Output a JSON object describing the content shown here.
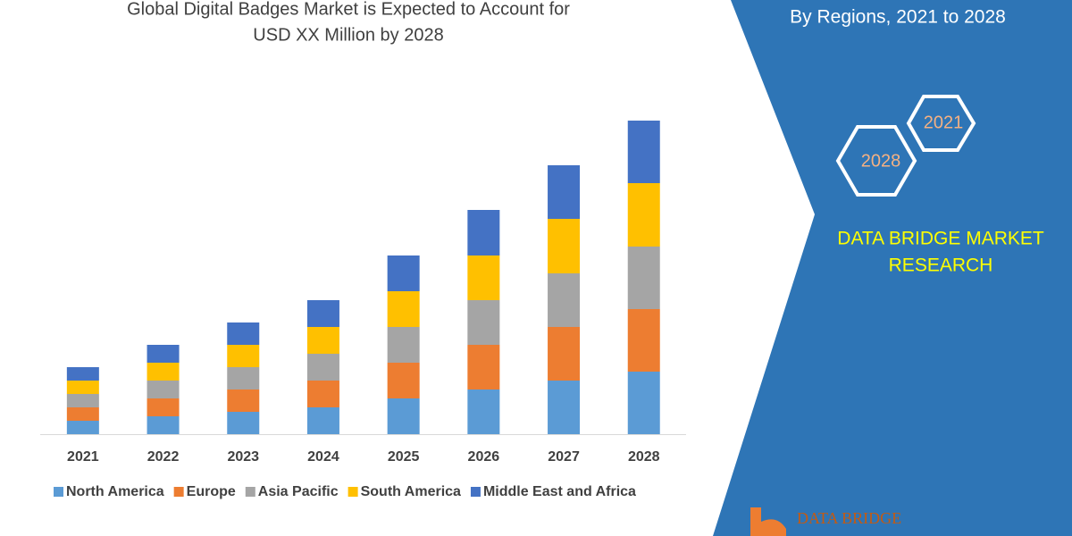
{
  "chart_data": {
    "type": "stacked-bar",
    "title": [
      "Global Digital Badges Market is Expected to Account for",
      "USD XX Million by 2028"
    ],
    "categories": [
      "2021",
      "2022",
      "2023",
      "2024",
      "2025",
      "2026",
      "2027",
      "2028"
    ],
    "series": [
      {
        "name": "North America",
        "color": "#5b9bd5",
        "values": [
          15,
          20,
          25,
          30,
          40,
          50,
          60,
          70
        ]
      },
      {
        "name": "Europe",
        "color": "#ed7d31",
        "values": [
          15,
          20,
          25,
          30,
          40,
          50,
          60,
          70
        ]
      },
      {
        "name": "Asia Pacific",
        "color": "#a5a5a5",
        "values": [
          15,
          20,
          25,
          30,
          40,
          50,
          60,
          70
        ]
      },
      {
        "name": "South America",
        "color": "#ffc000",
        "values": [
          15,
          20,
          25,
          30,
          40,
          50,
          61,
          71
        ]
      },
      {
        "name": "Middle East and Africa",
        "color": "#4472c4",
        "values": [
          15,
          20,
          25,
          30,
          40,
          51,
          60,
          70
        ]
      }
    ]
  },
  "panel": {
    "subtitle": "By Regions,  2021 to 2028",
    "hexagons": [
      "2021",
      "2028"
    ],
    "brand": [
      "DATA BRIDGE MARKET",
      "RESEARCH"
    ],
    "logo": "DATA BRIDGE"
  }
}
